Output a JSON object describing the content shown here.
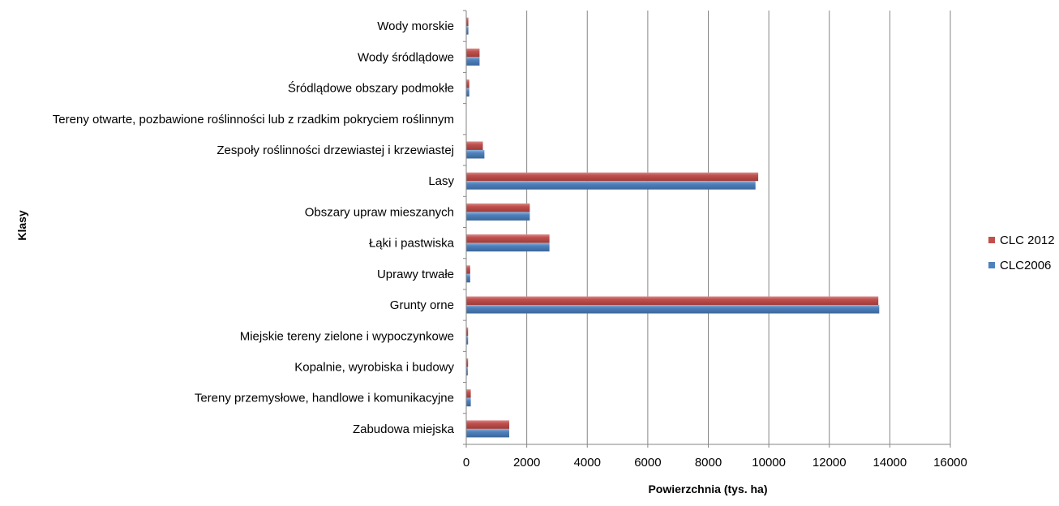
{
  "chart_data": {
    "type": "bar",
    "orientation": "horizontal",
    "title": "",
    "xlabel": "Powierzchnia (tys. ha)",
    "ylabel": "Klasy",
    "xlim": [
      0,
      16000
    ],
    "x_ticks": [
      "0",
      "2000",
      "4000",
      "6000",
      "8000",
      "10000",
      "12000",
      "14000",
      "16000"
    ],
    "grid": "vertical",
    "legend_position": "right",
    "categories": [
      "Wody morskie",
      "Wody śródlądowe",
      "Śródlądowe obszary podmokłe",
      "Tereny otwarte, pozbawione roślinności lub z rzadkim pokryciem roślinnym",
      "Zespoły roślinności drzewiastej i krzewiastej",
      "Lasy",
      "Obszary upraw mieszanych",
      "Łąki i pastwiska",
      "Uprawy trwałe",
      "Grunty orne",
      "Miejskie tereny zielone i wypoczynkowe",
      "Kopalnie, wyrobiska i budowy",
      "Tereny przemysłowe, handlowe i komunikacyjne",
      "Zabudowa miejska"
    ],
    "series": [
      {
        "name": "CLC 2012",
        "color": "#C0504D",
        "values": [
          70,
          440,
          100,
          10,
          550,
          9650,
          2100,
          2750,
          130,
          13620,
          60,
          60,
          150,
          1420
        ]
      },
      {
        "name": "CLC2006",
        "color": "#4F81BD",
        "values": [
          70,
          440,
          100,
          10,
          600,
          9560,
          2100,
          2750,
          130,
          13650,
          60,
          50,
          150,
          1420
        ]
      }
    ]
  }
}
